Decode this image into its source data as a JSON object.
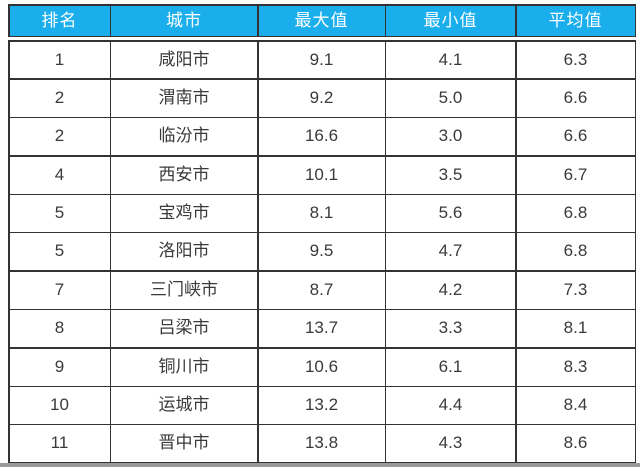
{
  "table": {
    "headers": [
      "排名",
      "城市",
      "最大值",
      "最小值",
      "平均值"
    ],
    "rows": [
      {
        "rank": "1",
        "city": "咸阳市",
        "max": "9.1",
        "min": "4.1",
        "avg": "6.3"
      },
      {
        "rank": "2",
        "city": "渭南市",
        "max": "9.2",
        "min": "5.0",
        "avg": "6.6"
      },
      {
        "rank": "2",
        "city": "临汾市",
        "max": "16.6",
        "min": "3.0",
        "avg": "6.6"
      },
      {
        "rank": "4",
        "city": "西安市",
        "max": "10.1",
        "min": "3.5",
        "avg": "6.7"
      },
      {
        "rank": "5",
        "city": "宝鸡市",
        "max": "8.1",
        "min": "5.6",
        "avg": "6.8"
      },
      {
        "rank": "5",
        "city": "洛阳市",
        "max": "9.5",
        "min": "4.7",
        "avg": "6.8"
      },
      {
        "rank": "7",
        "city": "三门峡市",
        "max": "8.7",
        "min": "4.2",
        "avg": "7.3"
      },
      {
        "rank": "8",
        "city": "吕梁市",
        "max": "13.7",
        "min": "3.3",
        "avg": "8.1"
      },
      {
        "rank": "9",
        "city": "铜川市",
        "max": "10.6",
        "min": "6.1",
        "avg": "8.3"
      },
      {
        "rank": "10",
        "city": "运城市",
        "max": "13.2",
        "min": "4.4",
        "avg": "8.4"
      },
      {
        "rank": "11",
        "city": "晋中市",
        "max": "13.8",
        "min": "4.3",
        "avg": "8.6"
      }
    ]
  },
  "chart_data": {
    "type": "table",
    "columns": [
      "排名",
      "城市",
      "最大值",
      "最小值",
      "平均值"
    ],
    "rows": [
      [
        1,
        "咸阳市",
        9.1,
        4.1,
        6.3
      ],
      [
        2,
        "渭南市",
        9.2,
        5.0,
        6.6
      ],
      [
        2,
        "临汾市",
        16.6,
        3.0,
        6.6
      ],
      [
        4,
        "西安市",
        10.1,
        3.5,
        6.7
      ],
      [
        5,
        "宝鸡市",
        8.1,
        5.6,
        6.8
      ],
      [
        5,
        "洛阳市",
        9.5,
        4.7,
        6.8
      ],
      [
        7,
        "三门峡市",
        8.7,
        4.2,
        7.3
      ],
      [
        8,
        "吕梁市",
        13.7,
        3.3,
        8.1
      ],
      [
        9,
        "铜川市",
        10.6,
        6.1,
        8.3
      ],
      [
        10,
        "运城市",
        13.2,
        4.4,
        8.4
      ],
      [
        11,
        "晋中市",
        13.8,
        4.3,
        8.6
      ]
    ]
  },
  "colors": {
    "header_bg": "#1baeec",
    "header_text": "#ffffff",
    "body_text": "#3a3a3a",
    "border": "#333333",
    "strip": "#9a9a9a",
    "page_bg": "#ffffff"
  }
}
